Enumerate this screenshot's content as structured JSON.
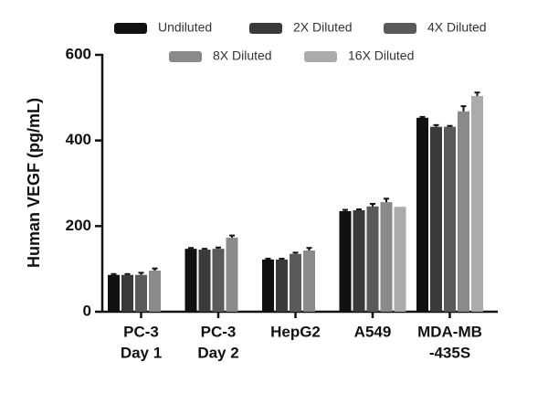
{
  "chart_data": {
    "type": "bar",
    "y_label": "Human VEGF (pg/mL)",
    "categories": [
      [
        "PC-3",
        "Day 1"
      ],
      [
        "PC-3",
        "Day 2"
      ],
      [
        "HepG2"
      ],
      [
        "A549"
      ],
      [
        "MDA-MB",
        "-435S"
      ]
    ],
    "series": [
      {
        "name": "Undiluted",
        "color": "#111111",
        "values": [
          86,
          147,
          122,
          235,
          453
        ],
        "errors": [
          2,
          2,
          2,
          3,
          2
        ]
      },
      {
        "name": "2X Diluted",
        "color": "#3a3a3a",
        "values": [
          86,
          145,
          122,
          237,
          432
        ],
        "errors": [
          2,
          2,
          2,
          2,
          4
        ]
      },
      {
        "name": "4X Diluted",
        "color": "#5a5a5a",
        "values": [
          86,
          147,
          135,
          246,
          432
        ],
        "errors": [
          5,
          3,
          3,
          6,
          2
        ]
      },
      {
        "name": "8X Diluted",
        "color": "#8a8a8a",
        "values": [
          96,
          173,
          143,
          256,
          468
        ],
        "errors": [
          5,
          5,
          6,
          8,
          12
        ]
      },
      {
        "name": "16X Diluted",
        "color": "#ababab",
        "values": [
          null,
          null,
          null,
          245,
          504
        ],
        "errors": [
          null,
          null,
          null,
          null,
          8
        ]
      }
    ],
    "ylim": [
      0,
      600
    ],
    "yticks": [
      0,
      200,
      400,
      600
    ],
    "grid": false
  }
}
